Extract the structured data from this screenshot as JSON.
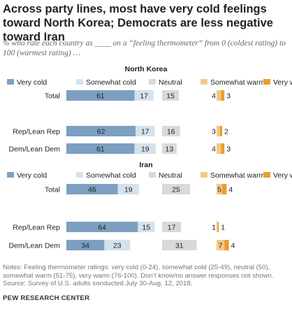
{
  "title": "Across party lines, most have very cold feelings toward North Korea; Democrats are less negative toward Iran",
  "subtitle": "% who rate each country as ____ on a “feeling thermometer” from 0 (coldest rating) to 100 (warmest rating) …",
  "notes": {
    "line1": "Notes: Feeling thermometer ratings: very cold (0-24), somewhat cold (25-49), neutral (50),",
    "line2": "somewhat warm (51-75), very warm (76-100). Don’t know/no answer responses not shown.",
    "source": "Source: Survey of U.S. adults conducted July 30-Aug. 12, 2018."
  },
  "footer": "PEW RESEARCH CENTER",
  "colors": {
    "very_cold": "#7d9fc2",
    "somewhat_cold": "#d5e1ec",
    "neutral": "#d9d9d9",
    "somewhat_warm": "#f3c887",
    "very_warm": "#e99e2b"
  },
  "chart_data": [
    {
      "type": "bar",
      "title": "North Korea",
      "legend": [
        "Very cold",
        "Somewhat cold",
        "Neutral",
        "Somewhat warm",
        "Very warm"
      ],
      "categories": [
        "Total",
        "Rep/Lean Rep",
        "Dem/Lean Dem"
      ],
      "series": [
        {
          "name": "Very cold",
          "values": [
            61,
            62,
            61
          ]
        },
        {
          "name": "Somewhat cold",
          "values": [
            17,
            17,
            19
          ]
        },
        {
          "name": "Neutral",
          "values": [
            15,
            16,
            13
          ]
        },
        {
          "name": "Somewhat warm",
          "values": [
            4,
            3,
            4
          ]
        },
        {
          "name": "Very warm",
          "values": [
            3,
            2,
            3
          ]
        }
      ]
    },
    {
      "type": "bar",
      "title": "Iran",
      "legend": [
        "Very cold",
        "Somewhat cold",
        "Neutral",
        "Somewhat warm",
        "Very warm"
      ],
      "categories": [
        "Total",
        "Rep/Lean Rep",
        "Dem/Lean Dem"
      ],
      "series": [
        {
          "name": "Very cold",
          "values": [
            46,
            64,
            34
          ]
        },
        {
          "name": "Somewhat cold",
          "values": [
            19,
            15,
            23
          ]
        },
        {
          "name": "Neutral",
          "values": [
            25,
            17,
            31
          ]
        },
        {
          "name": "Somewhat warm",
          "values": [
            5,
            1,
            7
          ]
        },
        {
          "name": "Very warm",
          "values": [
            4,
            1,
            4
          ]
        }
      ]
    }
  ]
}
